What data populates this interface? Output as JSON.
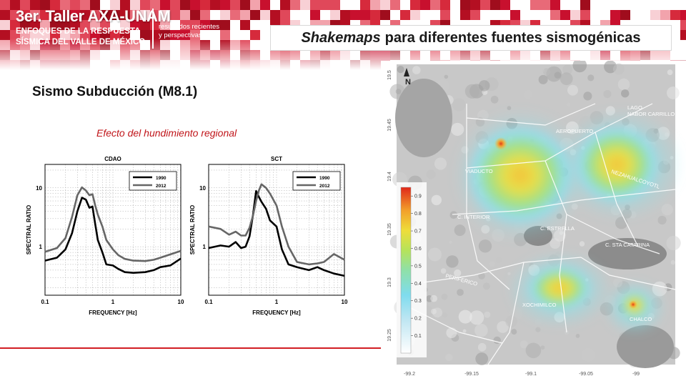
{
  "header": {
    "brand_title": "3er. Taller AXA-UNAM",
    "brand_line2": "ENFOQUES DE LA RESPUESTA",
    "brand_line3": "SÍSMICA DEL VALLE DE MÉXICO",
    "brand_side1": "resultados recientes",
    "brand_side2": "y perspectivas",
    "slide_title_italic": "Shakemaps",
    "slide_title_rest": "para diferentes fuentes sismogénicas"
  },
  "subtitle": "Sismo Subducción (M8.1)",
  "effect_label": "Efecto del hundimiento regional",
  "colors": {
    "brand_red": "#c8102e",
    "accent_red": "#d21e24",
    "series_1990": "#000000",
    "series_2012": "#666666"
  },
  "chart_data": [
    {
      "type": "line",
      "title": "CDAO",
      "xlabel": "FREQUENCY [Hz]",
      "ylabel": "SPECTRAL RATIO",
      "xscale": "log",
      "yscale": "log",
      "xlim": [
        0.1,
        10
      ],
      "ylim": [
        0.15,
        25
      ],
      "xticks": [
        "0.1",
        "1",
        "10"
      ],
      "yticks": [
        "1",
        "10"
      ],
      "grid": true,
      "legend": "top-right",
      "series": [
        {
          "name": "1990",
          "x": [
            0.1,
            0.15,
            0.2,
            0.25,
            0.3,
            0.35,
            0.4,
            0.45,
            0.5,
            0.55,
            0.6,
            0.7,
            0.8,
            1,
            1.2,
            1.5,
            2,
            3,
            4,
            5,
            7,
            10
          ],
          "values": [
            0.58,
            0.65,
            0.9,
            1.7,
            4.0,
            6.8,
            6.3,
            4.6,
            4.8,
            2.4,
            1.3,
            0.8,
            0.5,
            0.48,
            0.42,
            0.37,
            0.36,
            0.37,
            0.4,
            0.45,
            0.48,
            0.63
          ]
        },
        {
          "name": "2012",
          "x": [
            0.1,
            0.15,
            0.2,
            0.25,
            0.3,
            0.35,
            0.4,
            0.45,
            0.5,
            0.55,
            0.6,
            0.7,
            0.8,
            1,
            1.2,
            1.5,
            2,
            3,
            4,
            5,
            7,
            10
          ],
          "values": [
            0.82,
            0.95,
            1.4,
            3.2,
            7.5,
            10.2,
            9.0,
            7.5,
            7.8,
            5.0,
            3.5,
            2.2,
            1.3,
            0.9,
            0.72,
            0.62,
            0.58,
            0.57,
            0.6,
            0.65,
            0.74,
            0.85
          ]
        }
      ]
    },
    {
      "type": "line",
      "title": "SCT",
      "xlabel": "FREQUENCY [Hz]",
      "ylabel": "SPECTRAL RATIO",
      "xscale": "log",
      "yscale": "log",
      "xlim": [
        0.1,
        10
      ],
      "ylim": [
        0.15,
        25
      ],
      "xticks": [
        "0.1",
        "1",
        "10"
      ],
      "yticks": [
        "1",
        "10"
      ],
      "grid": true,
      "legend": "top-right",
      "series": [
        {
          "name": "1990",
          "x": [
            0.1,
            0.15,
            0.2,
            0.25,
            0.3,
            0.35,
            0.4,
            0.45,
            0.5,
            0.55,
            0.6,
            0.7,
            0.8,
            1,
            1.2,
            1.5,
            2,
            3,
            4,
            5,
            7,
            10
          ],
          "values": [
            0.95,
            1.05,
            1.0,
            1.2,
            0.95,
            1.0,
            1.5,
            3.5,
            8.8,
            7.0,
            5.8,
            4.4,
            2.8,
            2.2,
            0.9,
            0.5,
            0.45,
            0.4,
            0.45,
            0.4,
            0.35,
            0.32
          ]
        },
        {
          "name": "2012",
          "x": [
            0.1,
            0.15,
            0.2,
            0.25,
            0.3,
            0.35,
            0.4,
            0.45,
            0.5,
            0.55,
            0.6,
            0.7,
            0.8,
            1,
            1.2,
            1.5,
            2,
            3,
            4,
            5,
            7,
            10
          ],
          "values": [
            2.2,
            2.0,
            1.6,
            1.8,
            1.55,
            1.55,
            2.1,
            3.4,
            6.0,
            9.0,
            11.5,
            10.0,
            8.0,
            5.0,
            2.2,
            1.0,
            0.55,
            0.5,
            0.52,
            0.55,
            0.75,
            0.6
          ]
        }
      ]
    }
  ],
  "map": {
    "lat_ticks": [
      "19.5",
      "19.45",
      "19.4",
      "19.35",
      "19.3",
      "19.25"
    ],
    "lon_ticks": [
      "-99.2",
      "-99.15",
      "-99.1",
      "-99.05",
      "-99"
    ],
    "colorbar_ticks": [
      "0.9",
      "0.8",
      "0.7",
      "0.6",
      "0.5",
      "0.4",
      "0.3",
      "0.2",
      "0.1"
    ],
    "north_label": "N",
    "places": [
      "LAGO NABOR CARRILLO",
      "AEROPUERTO",
      "VIADUCTO",
      "NEZAHUALCOYOTL",
      "C. INTERIOR",
      "C. ESTRELLA",
      "C. STA CATARINA",
      "PERIFERICO",
      "XOCHIMILCO",
      "CHALCO"
    ]
  }
}
